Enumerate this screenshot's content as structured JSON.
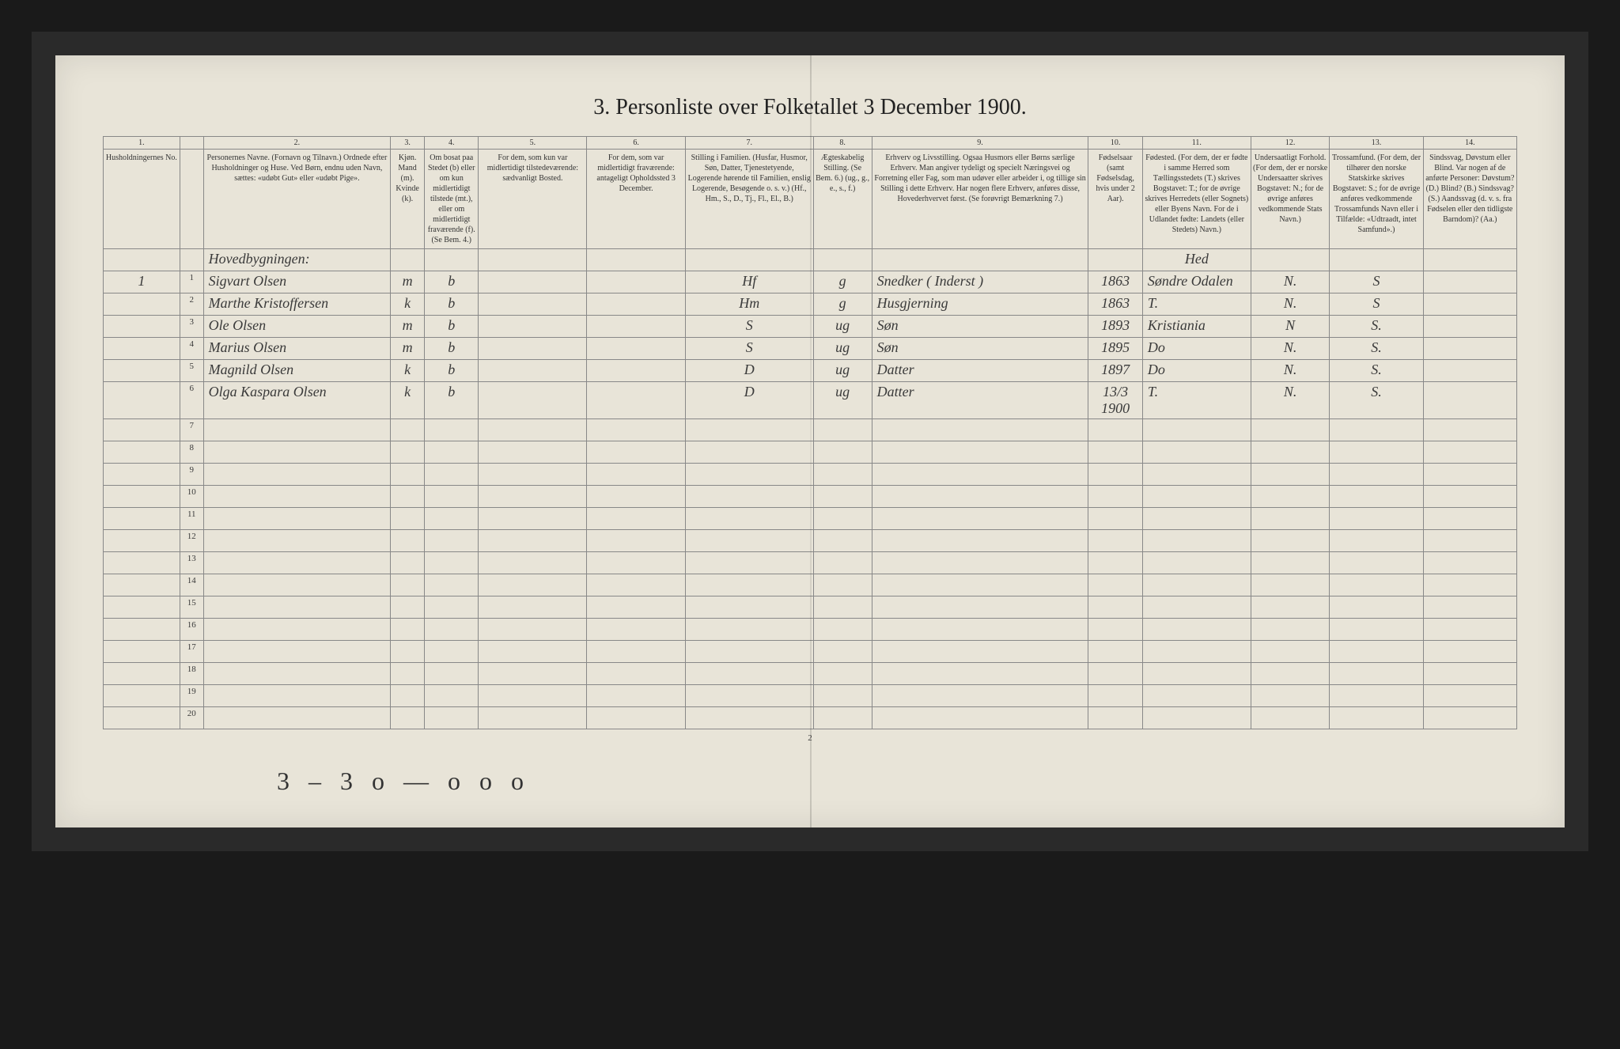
{
  "title": "3.  Personliste over Folketallet 3 December 1900.",
  "page_number": "2",
  "footer_notation": "3 – 3  o — o  o  o",
  "column_numbers": [
    "1.",
    "",
    "2.",
    "3.",
    "4.",
    "5.",
    "6.",
    "7.",
    "8.",
    "9.",
    "10.",
    "11.",
    "12.",
    "13.",
    "14."
  ],
  "headers": [
    "Husholdningernes No.",
    "",
    "Personernes Navne.\n(Fornavn og Tilnavn.)\nOrdnede efter Husholdninger og Huse. Ved Børn, endnu uden Navn, sættes: «udøbt Gut» eller «udøbt Pige».",
    "Kjøn.\nMand (m). Kvinde (k).",
    "Om bosat paa Stedet (b) eller om kun midlertidigt tilstede (mt.), eller om midlertidigt fraværende (f). (Se Bem. 4.)",
    "For dem, som kun var midlertidigt tilstedeværende:\nsædvanligt Bosted.",
    "For dem, som var midlertidigt fraværende:\nantageligt Opholdssted 3 December.",
    "Stilling i Familien.\n(Husfar, Husmor, Søn, Datter, Tjenestetyende, Logerende hørende til Familien, enslig Logerende, Besøgende o. s. v.)\n(Hf., Hm., S., D., Tj., Fl., El., B.)",
    "Ægteskabelig Stilling.\n(Se Bem. 6.)\n(ug., g., e., s., f.)",
    "Erhverv og Livsstilling.\nOgsaa Husmors eller Børns særlige Erhverv. Man angiver tydeligt og specielt Næringsvei og Forretning eller Fag, som man udøver eller arbeider i, og tillige sin Stilling i dette Erhverv. Har nogen flere Erhverv, anføres disse, Hovederhvervet først.\n(Se forøvrigt Bemærkning 7.)",
    "Fødselsaar\n(samt Fødselsdag, hvis under 2 Aar).",
    "Fødested.\n(For dem, der er fødte i samme Herred som Tællingsstedets (T.) skrives Bogstavet: T.; for de øvrige skrives Herredets (eller Sognets) eller Byens Navn. For de i Udlandet fødte: Landets (eller Stedets) Navn.)",
    "Undersaatligt Forhold.\n(For dem, der er norske Undersaatter skrives Bogstavet: N.; for de øvrige anføres vedkommende Stats Navn.)",
    "Trossamfund.\n(For dem, der tilhører den norske Statskirke skrives Bogstavet: S.; for de øvrige anføres vedkommende Trossamfunds Navn eller i Tilfælde: «Udtraadt, intet Samfund».)",
    "Sindssvag, Døvstum eller Blind.\nVar nogen af de anførte Personer:\nDøvstum? (D.) Blind? (B.) Sindssvag? (S.) Aandssvag (d. v. s. fra Fødselen eller den tidligste Barndom)? (Aa.)"
  ],
  "heading_note": "Hovedbygningen:",
  "birthplace_note": "Hed",
  "rows": [
    {
      "hh": "1",
      "n": "1",
      "name": "Sigvart Olsen",
      "sex": "m",
      "res": "b",
      "c5": "",
      "c6": "",
      "fam": "Hf",
      "mar": "g",
      "occ": "Snedker      ( Inderst )",
      "year": "1863",
      "birth": "Søndre Odalen",
      "nat": "N.",
      "rel": "S",
      "c14": ""
    },
    {
      "hh": "",
      "n": "2",
      "name": "Marthe Kristoffersen",
      "sex": "k",
      "res": "b",
      "c5": "",
      "c6": "",
      "fam": "Hm",
      "mar": "g",
      "occ": "Husgjerning",
      "year": "1863",
      "birth": "T.",
      "nat": "N.",
      "rel": "S",
      "c14": ""
    },
    {
      "hh": "",
      "n": "3",
      "name": "Ole Olsen",
      "sex": "m",
      "res": "b",
      "c5": "",
      "c6": "",
      "fam": "S",
      "mar": "ug",
      "occ": "Søn",
      "year": "1893",
      "birth": "Kristiania",
      "nat": "N",
      "rel": "S.",
      "c14": ""
    },
    {
      "hh": "",
      "n": "4",
      "name": "Marius Olsen",
      "sex": "m",
      "res": "b",
      "c5": "",
      "c6": "",
      "fam": "S",
      "mar": "ug",
      "occ": "Søn",
      "year": "1895",
      "birth": "Do",
      "nat": "N.",
      "rel": "S.",
      "c14": ""
    },
    {
      "hh": "",
      "n": "5",
      "name": "Magnild Olsen",
      "sex": "k",
      "res": "b",
      "c5": "",
      "c6": "",
      "fam": "D",
      "mar": "ug",
      "occ": "Datter",
      "year": "1897",
      "birth": "Do",
      "nat": "N.",
      "rel": "S.",
      "c14": ""
    },
    {
      "hh": "",
      "n": "6",
      "name": "Olga Kaspara Olsen",
      "sex": "k",
      "res": "b",
      "c5": "",
      "c6": "",
      "fam": "D",
      "mar": "ug",
      "occ": "Datter",
      "year": "13/3 1900",
      "birth": "T.",
      "nat": "N.",
      "rel": "S.",
      "c14": ""
    }
  ],
  "empty_rows": [
    7,
    8,
    9,
    10,
    11,
    12,
    13,
    14,
    15,
    16,
    17,
    18,
    19,
    20
  ],
  "colors": {
    "page_bg": "#e8e4d8",
    "frame_bg": "#2a2a2a",
    "body_bg": "#1a1a1a",
    "border": "#888888",
    "text": "#333333",
    "handwriting": "#3a3a3a"
  }
}
